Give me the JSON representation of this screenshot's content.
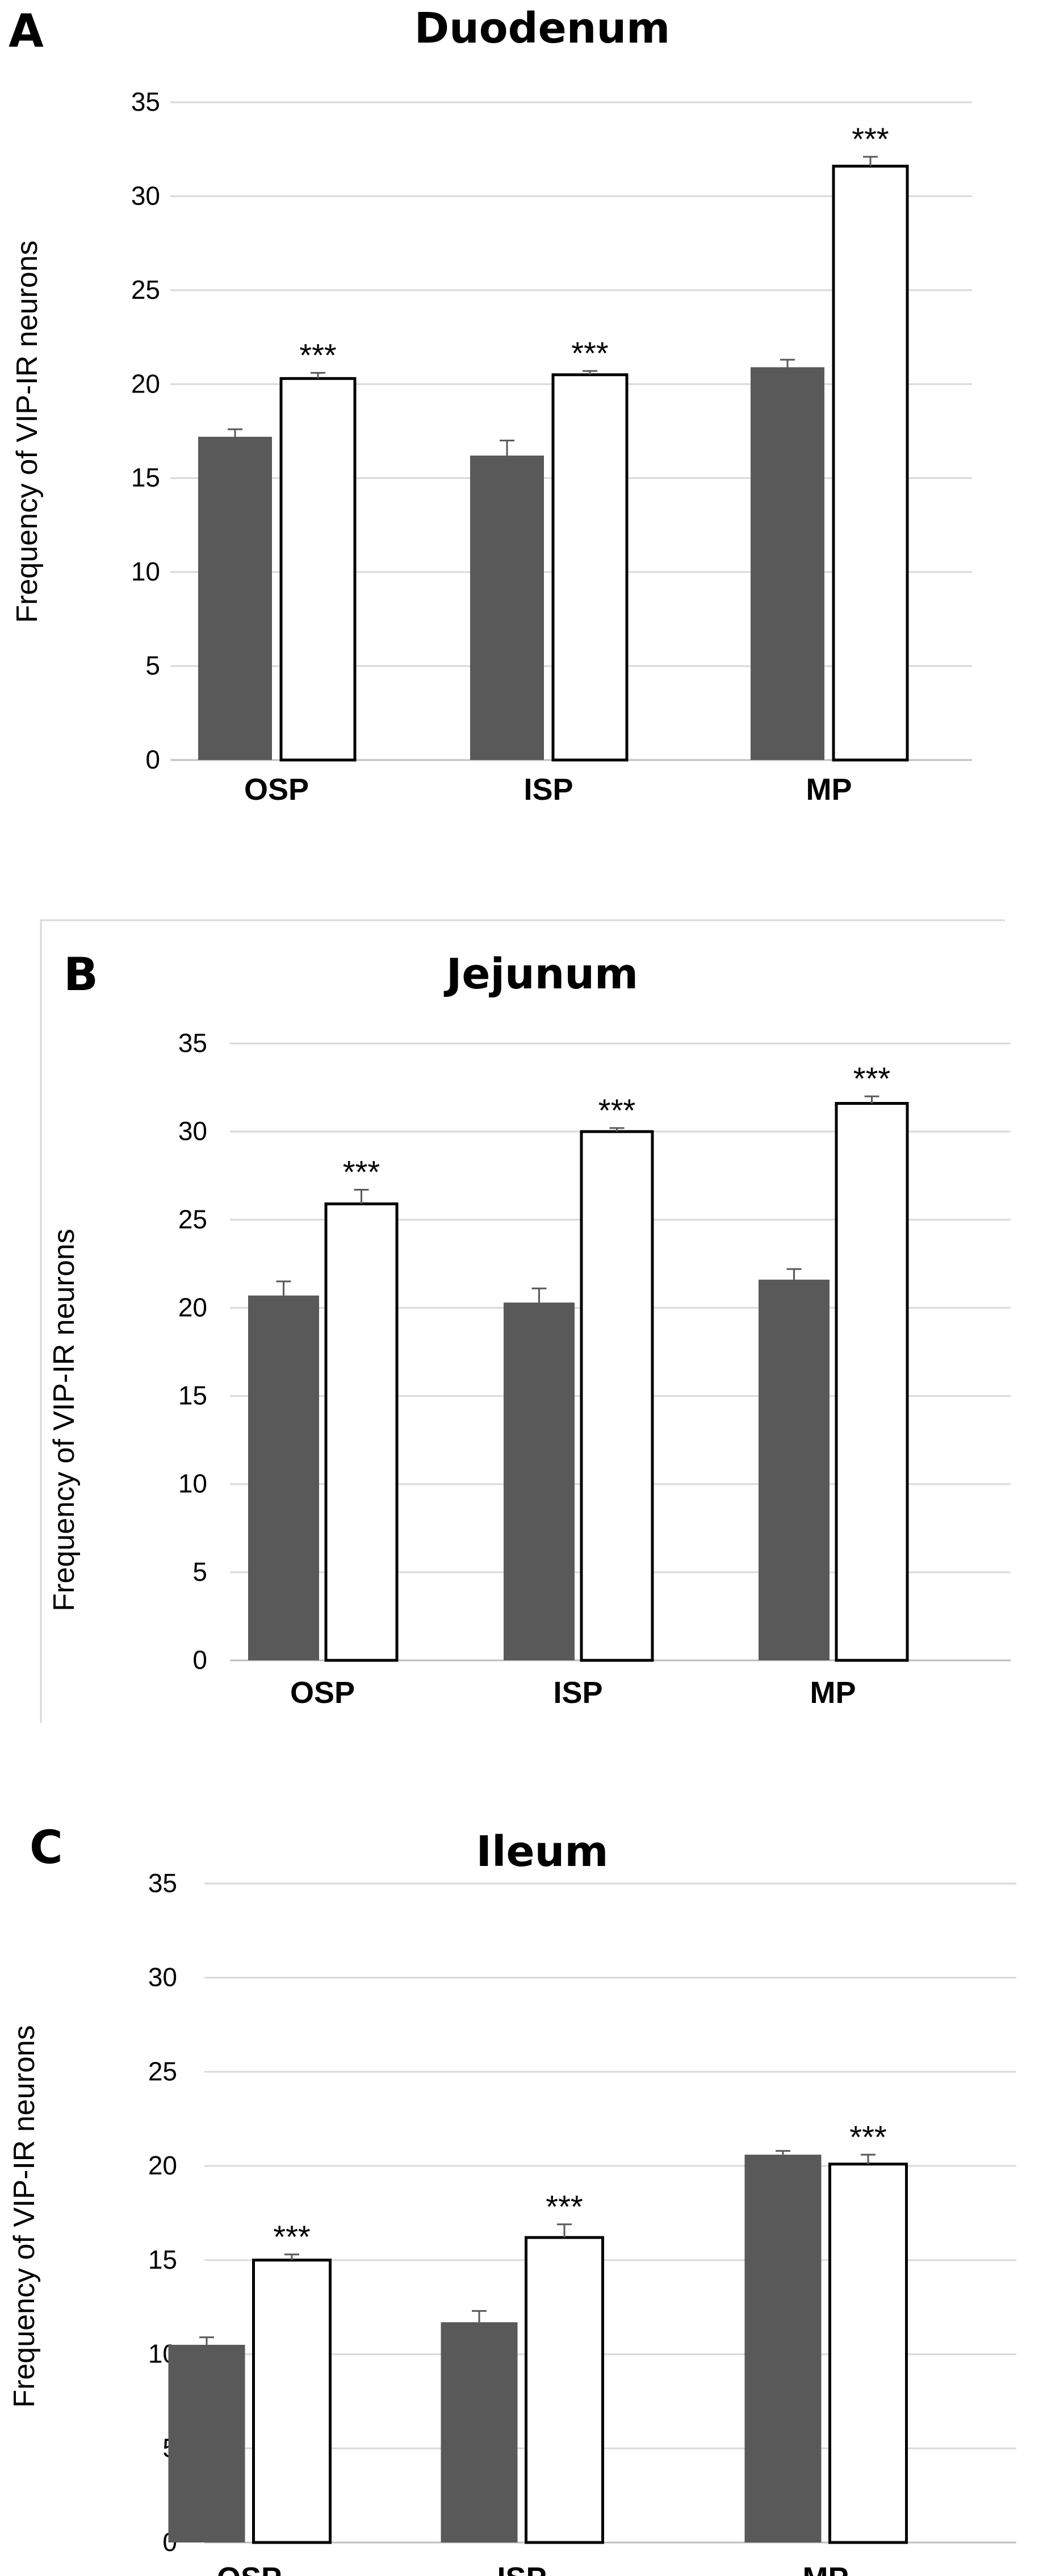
{
  "chart_data": [
    {
      "type": "bar",
      "panel": "A",
      "title": "Duodenum",
      "ylabel": "Frequency  of VIP-IR neurons",
      "ylim": [
        0,
        35
      ],
      "yticks": [
        0,
        5,
        10,
        15,
        20,
        25,
        30,
        35
      ],
      "categories": [
        "OSP",
        "ISP",
        "MP"
      ],
      "grid": true,
      "series": [
        {
          "fill": "#595959",
          "values": [
            17.2,
            16.2,
            20.9
          ],
          "errors": [
            0.4,
            0.8,
            0.4
          ]
        },
        {
          "fill": "#ffffff",
          "values": [
            20.3,
            20.5,
            31.6
          ],
          "errors": [
            0.3,
            0.2,
            0.5
          ],
          "annotations": [
            "***",
            "***",
            "***"
          ]
        }
      ]
    },
    {
      "type": "bar",
      "panel": "B",
      "title": "Jejunum",
      "ylabel": "Frequency  of VIP-IR neurons",
      "ylim": [
        0,
        35
      ],
      "yticks": [
        0,
        5,
        10,
        15,
        20,
        25,
        30,
        35
      ],
      "categories": [
        "OSP",
        "ISP",
        "MP"
      ],
      "grid": true,
      "series": [
        {
          "fill": "#595959",
          "values": [
            20.7,
            20.3,
            21.6
          ],
          "errors": [
            0.8,
            0.8,
            0.6
          ]
        },
        {
          "fill": "#ffffff",
          "values": [
            25.9,
            30.0,
            31.6
          ],
          "errors": [
            0.8,
            0.2,
            0.4
          ],
          "annotations": [
            "***",
            "***",
            "***"
          ]
        }
      ]
    },
    {
      "type": "bar",
      "panel": "C",
      "title": "Ileum",
      "ylabel": "Frequency  of VIP-IR neurons",
      "ylim": [
        0,
        35
      ],
      "yticks": [
        0,
        5,
        10,
        15,
        20,
        25,
        30,
        35
      ],
      "categories": [
        "OSP",
        "ISP",
        "MP"
      ],
      "grid": true,
      "series": [
        {
          "fill": "#595959",
          "values": [
            10.5,
            11.7,
            20.6
          ],
          "errors": [
            0.4,
            0.6,
            0.2
          ]
        },
        {
          "fill": "#ffffff",
          "values": [
            15.0,
            16.2,
            20.1
          ],
          "errors": [
            0.3,
            0.7,
            0.5
          ],
          "annotations": [
            "***",
            "***",
            "***"
          ]
        }
      ]
    }
  ]
}
